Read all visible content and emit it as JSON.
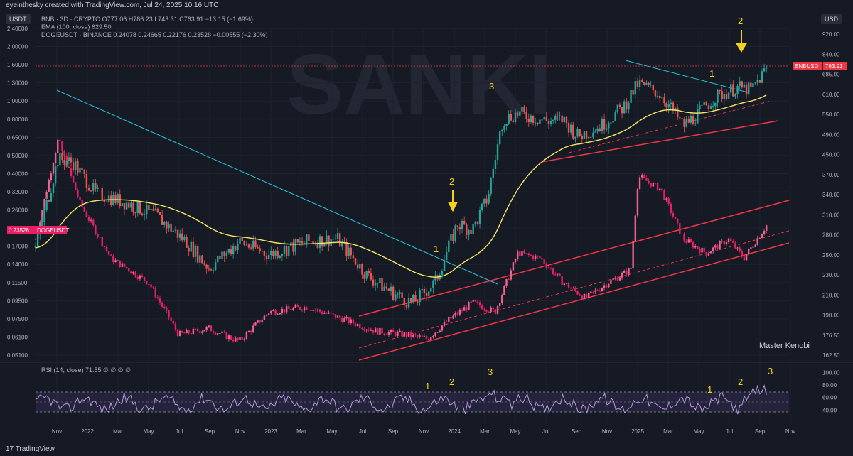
{
  "header": {
    "credit": "eyeinthesky created with TradingView.com, Jul 24, 2025 10:16 UTC"
  },
  "legend": {
    "bnb": "BNB · 3D · CRYPTO  O777.06  H786.23  L743.31  C763.91  −13.15 (−1.69%)",
    "ema": "EMA (100, close)  629.50",
    "doge": "DOGEUSDT · BINANCE  0.24078  0.24665  0.22176  0.23528  −0.00555 (−2.30%)"
  },
  "left_currency": "USDT",
  "right_currency": "USD",
  "rsi_label": "RSI (14, close)  71.55  ∅  ∅  ∅  ∅",
  "watermark": "Master Kenobi",
  "tv_logo": "TradingView",
  "colors": {
    "bnb_up": "#26a69a",
    "bnb_down": "#ef5350",
    "doge": "#e91e63",
    "ema": "#f5e663",
    "cyan": "#26c6da",
    "red": "#f23645",
    "yellow": "#f5d11b",
    "rsi": "#b39ddb"
  },
  "chart_data": [
    {
      "type": "line",
      "x_ticks": [
        "Nov",
        "2022",
        "Mar",
        "May",
        "Jul",
        "Sep",
        "Nov",
        "2023",
        "Mar",
        "May",
        "Jul",
        "Sep",
        "Nov",
        "2024",
        "Mar",
        "May",
        "Jul",
        "Sep",
        "Nov",
        "2025",
        "Mar",
        "May",
        "Jul",
        "Sep",
        "Nov"
      ],
      "left_axis": {
        "label": "USDT",
        "scale": "log",
        "ticks": [
          "2.40000",
          "2.00000",
          "1.60000",
          "1.30000",
          "1.00000",
          "0.80000",
          "0.65000",
          "0.50000",
          "0.40000",
          "0.32000",
          "0.26000",
          "0.21000",
          "0.17000",
          "0.14000",
          "0.11500",
          "0.09500",
          "0.07500",
          "0.06100",
          "0.05100"
        ]
      },
      "right_axis": {
        "label": "USD",
        "scale": "log",
        "ticks": [
          "920.00",
          "840.00",
          "685.00",
          "610.00",
          "550.00",
          "490.00",
          "450.00",
          "370.00",
          "340.00",
          "310.00",
          "280.00",
          "250.00",
          "230.00",
          "210.00",
          "190.00",
          "176.50",
          "162.50"
        ]
      },
      "price_tags": [
        {
          "name": "BNBUSD",
          "value": "763.91"
        },
        {
          "name": "DOGEUSDT",
          "value": "0.23528"
        }
      ],
      "series": [
        {
          "name": "BNBUSD",
          "ema": "EMA (100, close)",
          "values": [
            [
              0,
              290
            ],
            [
              0.03,
              470
            ],
            [
              0.05,
              460
            ],
            [
              0.08,
              390
            ],
            [
              0.12,
              370
            ],
            [
              0.16,
              345
            ],
            [
              0.2,
              300
            ],
            [
              0.23,
              260
            ],
            [
              0.27,
              300
            ],
            [
              0.31,
              280
            ],
            [
              0.36,
              300
            ],
            [
              0.4,
              305
            ],
            [
              0.44,
              250
            ],
            [
              0.47,
              230
            ],
            [
              0.5,
              215
            ],
            [
              0.53,
              240
            ],
            [
              0.56,
              330
            ],
            [
              0.58,
              320
            ],
            [
              0.6,
              380
            ],
            [
              0.62,
              580
            ],
            [
              0.64,
              600
            ],
            [
              0.68,
              575
            ],
            [
              0.7,
              580
            ],
            [
              0.72,
              530
            ],
            [
              0.75,
              560
            ],
            [
              0.78,
              620
            ],
            [
              0.8,
              705
            ],
            [
              0.83,
              665
            ],
            [
              0.86,
              560
            ],
            [
              0.88,
              600
            ],
            [
              0.9,
              650
            ],
            [
              0.93,
              690
            ],
            [
              0.95,
              680
            ],
            [
              0.97,
              763.91
            ]
          ]
        },
        {
          "name": "DOGEUSDT",
          "values": [
            [
              0,
              0.2
            ],
            [
              0.03,
              0.65
            ],
            [
              0.06,
              0.3
            ],
            [
              0.1,
              0.16
            ],
            [
              0.15,
              0.12
            ],
            [
              0.19,
              0.065
            ],
            [
              0.23,
              0.07
            ],
            [
              0.27,
              0.06
            ],
            [
              0.31,
              0.085
            ],
            [
              0.36,
              0.09
            ],
            [
              0.4,
              0.08
            ],
            [
              0.45,
              0.068
            ],
            [
              0.49,
              0.065
            ],
            [
              0.52,
              0.062
            ],
            [
              0.55,
              0.078
            ],
            [
              0.58,
              0.095
            ],
            [
              0.61,
              0.085
            ],
            [
              0.64,
              0.17
            ],
            [
              0.67,
              0.16
            ],
            [
              0.7,
              0.12
            ],
            [
              0.73,
              0.1
            ],
            [
              0.76,
              0.12
            ],
            [
              0.79,
              0.14
            ],
            [
              0.8,
              0.42
            ],
            [
              0.83,
              0.36
            ],
            [
              0.86,
              0.2
            ],
            [
              0.89,
              0.17
            ],
            [
              0.92,
              0.2
            ],
            [
              0.94,
              0.16
            ],
            [
              0.97,
              0.23528
            ]
          ]
        }
      ],
      "annotations": [
        "1",
        "2",
        "3",
        "1",
        "2"
      ]
    },
    {
      "type": "line",
      "name": "RSI (14, close)",
      "value": "71.55",
      "y_ticks": [
        "100.00",
        "80.00",
        "60.00",
        "40.00"
      ],
      "annotations": [
        "1",
        "2",
        "3",
        "1",
        "2",
        "3"
      ]
    }
  ]
}
